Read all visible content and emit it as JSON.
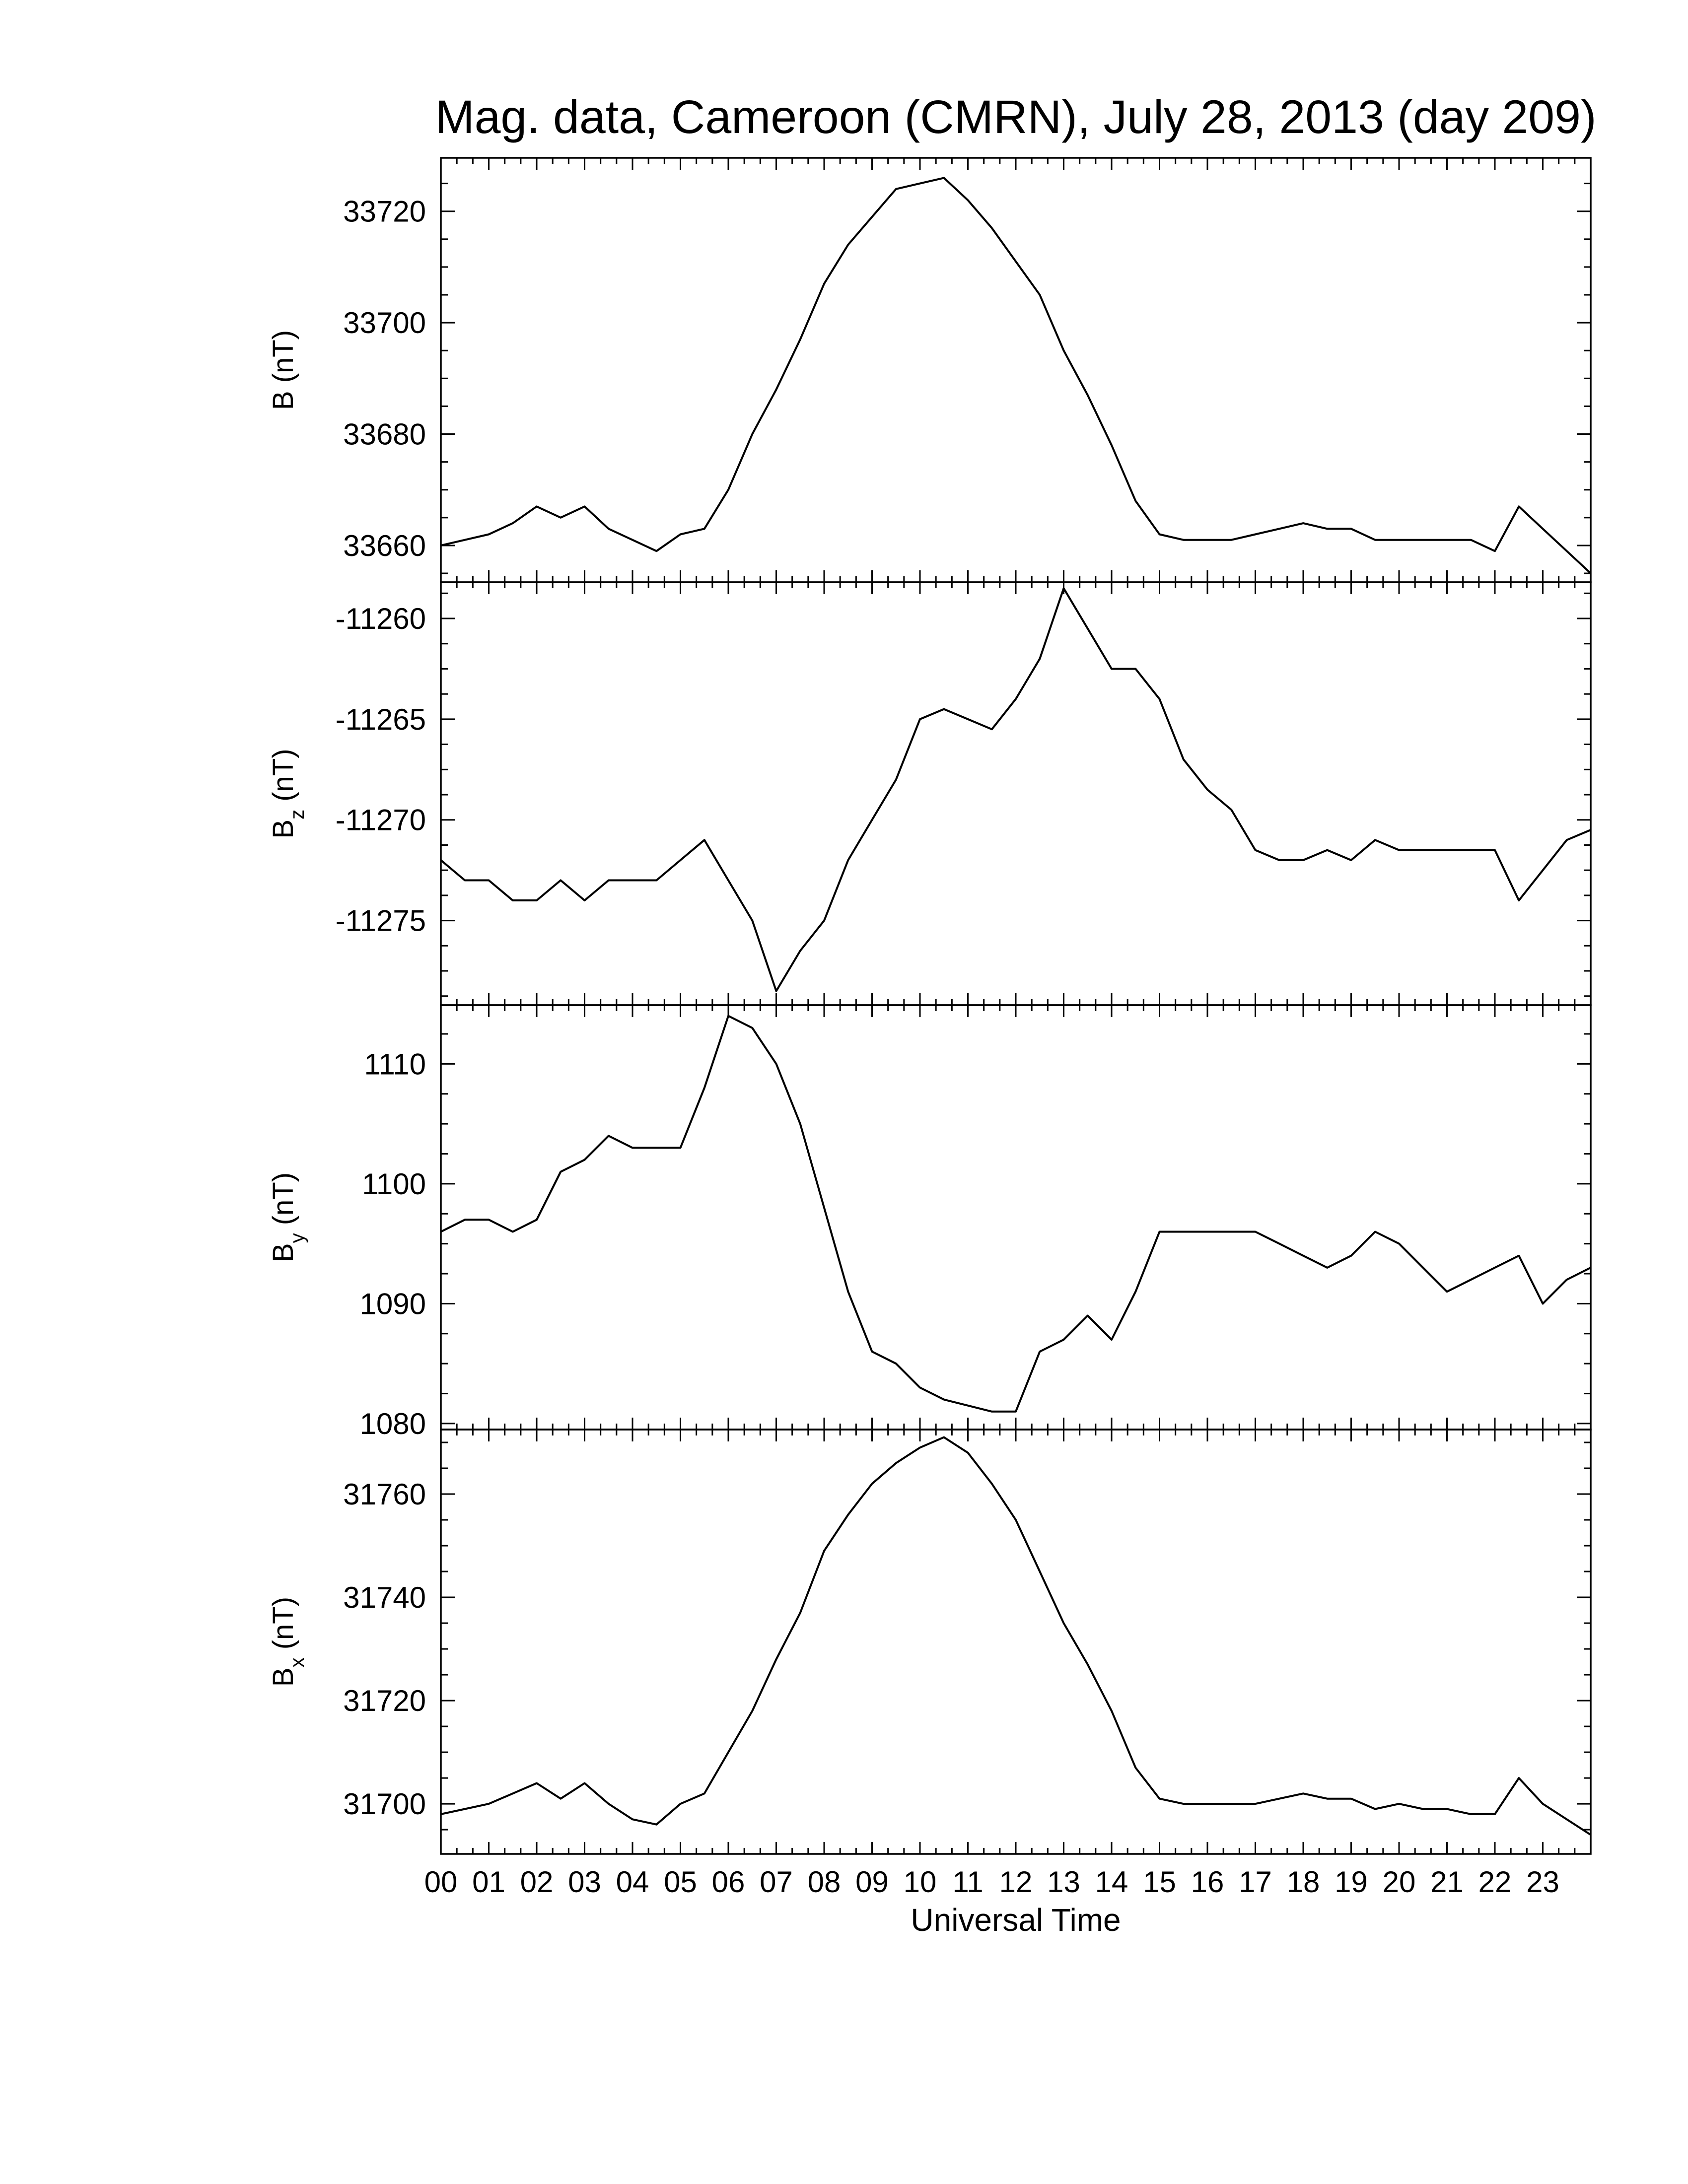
{
  "figure": {
    "title": "Mag. data, Cameroon (CMRN), July 28, 2013 (day 209)",
    "xlabel": "Universal Time"
  },
  "chart_data": {
    "type": "line",
    "title": "Mag. data, Cameroon (CMRN), July 28, 2013 (day 209)",
    "xlabel": "Universal Time",
    "x_unit": "hours UT",
    "xlim": [
      0,
      24
    ],
    "x_tick_labels": [
      "00",
      "01",
      "02",
      "03",
      "04",
      "05",
      "06",
      "07",
      "08",
      "09",
      "10",
      "11",
      "12",
      "13",
      "14",
      "15",
      "16",
      "17",
      "18",
      "19",
      "20",
      "21",
      "22",
      "23"
    ],
    "grid": false,
    "legend": "none",
    "panels": [
      {
        "id": "B",
        "ylabel_main": "B",
        "ylabel_sub": "",
        "ylabel_unit": "(nT)",
        "ylim": [
          33653.4,
          33729.6
        ],
        "yticks": [
          33660,
          33680,
          33700,
          33720
        ],
        "ytick_labels": [
          "33660",
          "33680",
          "33700",
          "33720"
        ],
        "x": [
          0,
          0.5,
          1,
          1.5,
          2,
          2.5,
          3,
          3.5,
          4,
          4.5,
          5,
          5.5,
          6,
          6.5,
          7,
          7.5,
          8,
          8.5,
          9,
          9.5,
          10,
          10.5,
          11,
          11.5,
          12,
          12.5,
          13,
          13.5,
          14,
          14.5,
          15,
          15.5,
          16,
          16.5,
          17,
          17.5,
          18,
          18.5,
          19,
          19.5,
          20,
          20.5,
          21,
          21.5,
          22,
          22.5,
          23,
          23.5,
          24
        ],
        "y": [
          33660,
          33661,
          33662,
          33664,
          33667,
          33665,
          33667,
          33663,
          33661,
          33659,
          33662,
          33663,
          33670,
          33680,
          33688,
          33697,
          33707,
          33714,
          33719,
          33724,
          33725,
          33726,
          33722,
          33717,
          33711,
          33705,
          33695,
          33687,
          33678,
          33668,
          33662,
          33661,
          33661,
          33661,
          33662,
          33663,
          33664,
          33663,
          33663,
          33661,
          33661,
          33661,
          33661,
          33661,
          33659,
          33667,
          33663,
          33659,
          33655
        ]
      },
      {
        "id": "Bz",
        "ylabel_main": "B",
        "ylabel_sub": "z",
        "ylabel_unit": "(nT)",
        "ylim": [
          -11279.2,
          -11258.2
        ],
        "yticks": [
          -11275,
          -11270,
          -11265,
          -11260
        ],
        "ytick_labels": [
          "-11275",
          "-11270",
          "-11265",
          "-11260"
        ],
        "x": [
          0,
          0.5,
          1,
          1.5,
          2,
          2.5,
          3,
          3.5,
          4,
          4.5,
          5,
          5.5,
          6,
          6.5,
          7,
          7.5,
          8,
          8.5,
          9,
          9.5,
          10,
          10.5,
          11,
          11.5,
          12,
          12.5,
          13,
          13.5,
          14,
          14.5,
          15,
          15.5,
          16,
          16.5,
          17,
          17.5,
          18,
          18.5,
          19,
          19.5,
          20,
          20.5,
          21,
          21.5,
          22,
          22.5,
          23,
          23.5,
          24
        ],
        "y": [
          -11272,
          -11273,
          -11273,
          -11274,
          -11274,
          -11273,
          -11274,
          -11273,
          -11273,
          -11273,
          -11272,
          -11271,
          -11273,
          -11275,
          -11278.5,
          -11276.5,
          -11275,
          -11272,
          -11270,
          -11268,
          -11265,
          -11264.5,
          -11265,
          -11265.5,
          -11264,
          -11262,
          -11258.5,
          -11260.5,
          -11262.5,
          -11262.5,
          -11264,
          -11267,
          -11268.5,
          -11269.5,
          -11271.5,
          -11272,
          -11272,
          -11271.5,
          -11272,
          -11271,
          -11271.5,
          -11271.5,
          -11271.5,
          -11271.5,
          -11271.5,
          -11274,
          -11272.5,
          -11271,
          -11270.5
        ]
      },
      {
        "id": "By",
        "ylabel_main": "B",
        "ylabel_sub": "y",
        "ylabel_unit": "(nT)",
        "ylim": [
          1079.5,
          1114.9
        ],
        "yticks": [
          1080,
          1090,
          1100,
          1110
        ],
        "ytick_labels": [
          "1080",
          "1090",
          "1100",
          "1110"
        ],
        "x": [
          0,
          0.5,
          1,
          1.5,
          2,
          2.5,
          3,
          3.5,
          4,
          4.5,
          5,
          5.5,
          6,
          6.5,
          7,
          7.5,
          8,
          8.5,
          9,
          9.5,
          10,
          10.5,
          11,
          11.5,
          12,
          12.5,
          13,
          13.5,
          14,
          14.5,
          15,
          15.5,
          16,
          16.5,
          17,
          17.5,
          18,
          18.5,
          19,
          19.5,
          20,
          20.5,
          21,
          21.5,
          22,
          22.5,
          23,
          23.5,
          24
        ],
        "y": [
          1096,
          1097,
          1097,
          1096,
          1097,
          1101,
          1102,
          1104,
          1103,
          1103,
          1103,
          1108,
          1114,
          1113,
          1110,
          1105,
          1098,
          1091,
          1086,
          1085,
          1083,
          1082,
          1081.5,
          1081,
          1081,
          1086,
          1087,
          1089,
          1087,
          1091,
          1096,
          1096,
          1096,
          1096,
          1096,
          1095,
          1094,
          1093,
          1094,
          1096,
          1095,
          1093,
          1091,
          1092,
          1093,
          1094,
          1090,
          1092,
          1093
        ]
      },
      {
        "id": "Bx",
        "ylabel_main": "B",
        "ylabel_sub": "x",
        "ylabel_unit": "(nT)",
        "ylim": [
          31690.3,
          31772.5
        ],
        "yticks": [
          31700,
          31720,
          31740,
          31760
        ],
        "ytick_labels": [
          "31700",
          "31720",
          "31740",
          "31760"
        ],
        "x": [
          0,
          0.5,
          1,
          1.5,
          2,
          2.5,
          3,
          3.5,
          4,
          4.5,
          5,
          5.5,
          6,
          6.5,
          7,
          7.5,
          8,
          8.5,
          9,
          9.5,
          10,
          10.5,
          11,
          11.5,
          12,
          12.5,
          13,
          13.5,
          14,
          14.5,
          15,
          15.5,
          16,
          16.5,
          17,
          17.5,
          18,
          18.5,
          19,
          19.5,
          20,
          20.5,
          21,
          21.5,
          22,
          22.5,
          23,
          23.5,
          24
        ],
        "y": [
          31698,
          31699,
          31700,
          31702,
          31704,
          31701,
          31704,
          31700,
          31697,
          31696,
          31700,
          31702,
          31710,
          31718,
          31728,
          31737,
          31749,
          31756,
          31762,
          31766,
          31769,
          31771,
          31768,
          31762,
          31755,
          31745,
          31735,
          31727,
          31718,
          31707,
          31701,
          31700,
          31700,
          31700,
          31700,
          31701,
          31702,
          31701,
          31701,
          31699,
          31700,
          31699,
          31699,
          31698,
          31698,
          31705,
          31700,
          31697,
          31694
        ]
      }
    ]
  }
}
